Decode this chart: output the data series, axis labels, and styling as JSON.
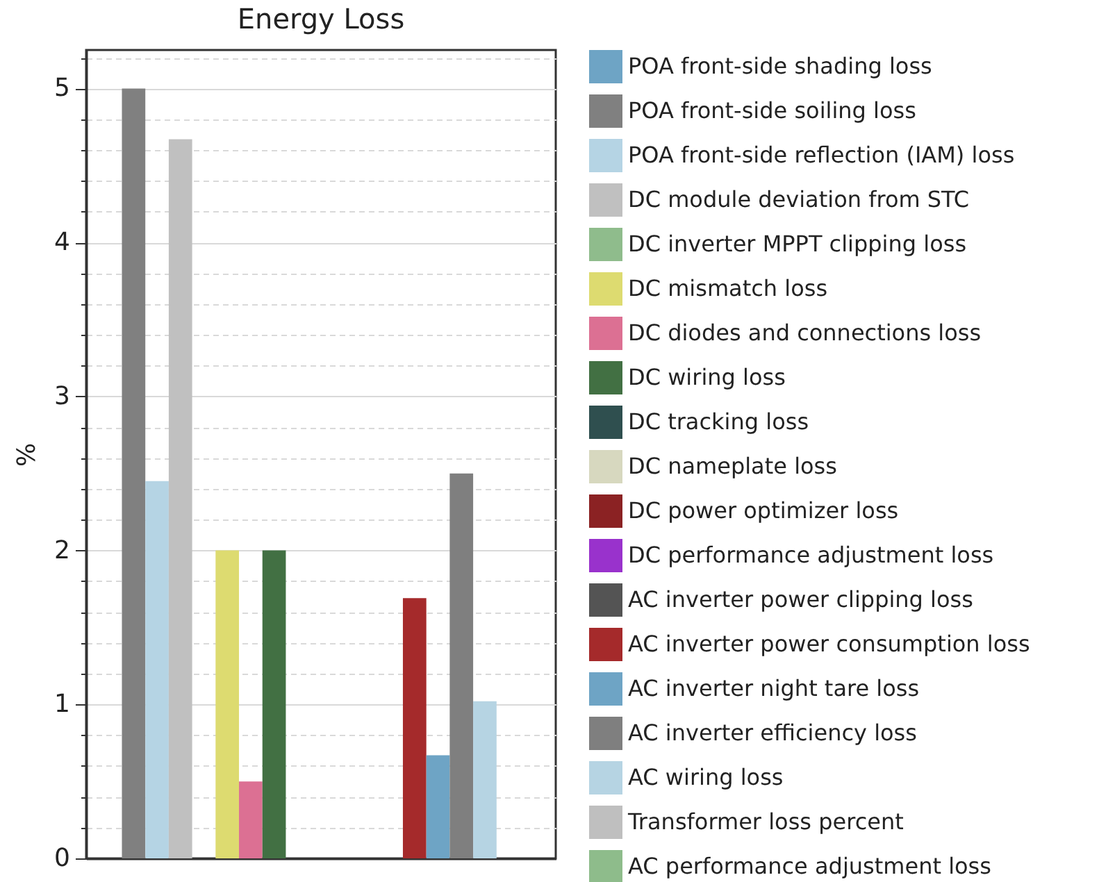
{
  "chart_data": {
    "type": "bar",
    "title": "Energy Loss",
    "ylabel": "%",
    "categories": [
      null
    ],
    "series": [
      {
        "name": "POA front-side shading loss",
        "color": "#6ea4c5",
        "values": [
          0
        ]
      },
      {
        "name": "POA front-side soiling loss",
        "color": "#808080",
        "values": [
          5
        ]
      },
      {
        "name": "POA front-side reflection (IAM) loss",
        "color": "#b5d4e4",
        "values": [
          2.45
        ]
      },
      {
        "name": "DC module deviation from STC",
        "color": "#c0c0c0",
        "values": [
          4.67
        ]
      },
      {
        "name": "DC inverter MPPT clipping loss",
        "color": "#8fbc8c",
        "values": [
          0
        ]
      },
      {
        "name": "DC mismatch loss",
        "color": "#dddb70",
        "values": [
          2
        ]
      },
      {
        "name": "DC diodes and connections loss",
        "color": "#dc7093",
        "values": [
          0.5
        ]
      },
      {
        "name": "DC wiring loss",
        "color": "#427043",
        "values": [
          2
        ]
      },
      {
        "name": "DC tracking loss",
        "color": "#2f4f4f",
        "values": [
          0
        ]
      },
      {
        "name": "DC nameplate loss",
        "color": "#d7d8bf",
        "values": [
          0
        ]
      },
      {
        "name": "DC power optimizer loss",
        "color": "#8b2223",
        "values": [
          0
        ]
      },
      {
        "name": "DC performance adjustment loss",
        "color": "#9932cc",
        "values": [
          0
        ]
      },
      {
        "name": "AC inverter power clipping loss",
        "color": "#545454",
        "values": [
          0
        ]
      },
      {
        "name": "AC inverter power consumption loss",
        "color": "#a52a2b",
        "values": [
          1.69
        ]
      },
      {
        "name": "AC inverter night tare loss",
        "color": "#6ea4c5",
        "values": [
          0.67
        ]
      },
      {
        "name": "AC inverter efficiency loss",
        "color": "#7f7f7f",
        "values": [
          2.5
        ]
      },
      {
        "name": "AC wiring loss",
        "color": "#b6d4e3",
        "values": [
          1.02
        ]
      },
      {
        "name": "Transformer loss percent",
        "color": "#bfbfbf",
        "values": [
          0
        ]
      },
      {
        "name": "AC performance adjustment loss",
        "color": "#8ebc8b",
        "values": [
          0
        ]
      }
    ],
    "ylim": [
      0,
      5.25
    ],
    "yticks": [
      0,
      {
        "value": 0.2,
        "label": null
      },
      {
        "value": 0.4,
        "label": null
      },
      {
        "value": 0.6,
        "label": null
      },
      {
        "value": 0.8,
        "label": null
      },
      1,
      {
        "value": 1.2,
        "label": null
      },
      {
        "value": 1.4,
        "label": null
      },
      {
        "value": 1.6,
        "label": null
      },
      {
        "value": 1.8,
        "label": null
      },
      2,
      {
        "value": 2.2,
        "label": null
      },
      {
        "value": 2.4,
        "label": null
      },
      {
        "value": 2.6,
        "label": null
      },
      {
        "value": 2.8,
        "label": null
      },
      3,
      {
        "value": 3.2,
        "label": null
      },
      {
        "value": 3.4,
        "label": null
      },
      {
        "value": 3.6,
        "label": null
      },
      {
        "value": 3.8,
        "label": null
      },
      4,
      {
        "value": 4.2,
        "label": null
      },
      {
        "value": 4.4,
        "label": null
      },
      {
        "value": 4.6,
        "label": null
      },
      {
        "value": 4.8,
        "label": null
      },
      5,
      {
        "value": 5.2,
        "label": null
      }
    ],
    "grid": "y",
    "legend": "right",
    "tick_labels": "y"
  }
}
